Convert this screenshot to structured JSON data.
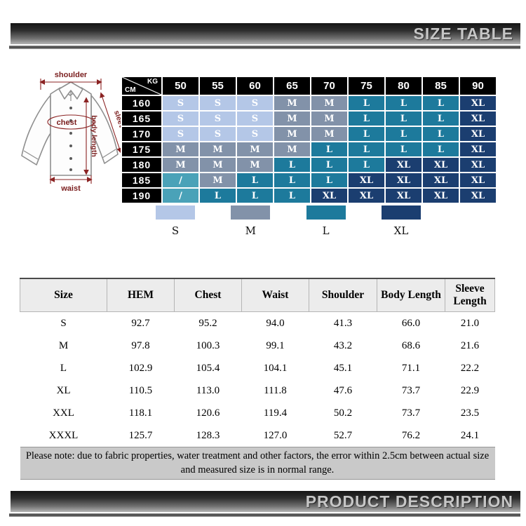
{
  "header_bar": {
    "title": "SIZE TABLE"
  },
  "footer_bar": {
    "title": "PRODUCT DESCRIPTION"
  },
  "diagram": {
    "annotation_color": "#8b2323",
    "labels": {
      "shoulder": "shoulder",
      "chest": "chest",
      "sleeve": "sleeve",
      "body_length": "body length",
      "waist": "waist"
    }
  },
  "matrix": {
    "corner": {
      "top_right": "KG",
      "bottom_left": "CM"
    },
    "kg_columns": [
      "50",
      "55",
      "60",
      "65",
      "70",
      "75",
      "80",
      "85",
      "90"
    ],
    "rows": [
      {
        "cm": "160",
        "cells": [
          "S",
          "S",
          "S",
          "M",
          "M",
          "L",
          "L",
          "L",
          "XL"
        ]
      },
      {
        "cm": "165",
        "cells": [
          "S",
          "S",
          "S",
          "M",
          "M",
          "L",
          "L",
          "L",
          "XL"
        ]
      },
      {
        "cm": "170",
        "cells": [
          "S",
          "S",
          "S",
          "M",
          "M",
          "L",
          "L",
          "L",
          "XL"
        ]
      },
      {
        "cm": "175",
        "cells": [
          "M",
          "M",
          "M",
          "M",
          "L",
          "L",
          "L",
          "L",
          "XL"
        ]
      },
      {
        "cm": "180",
        "cells": [
          "M",
          "M",
          "M",
          "L",
          "L",
          "L",
          "XL",
          "XL",
          "XL"
        ]
      },
      {
        "cm": "185",
        "cells": [
          "/",
          "M",
          "L",
          "L",
          "L",
          "XL",
          "XL",
          "XL",
          "XL"
        ]
      },
      {
        "cm": "190",
        "cells": [
          "/",
          "L",
          "L",
          "L",
          "XL",
          "XL",
          "XL",
          "XL",
          "XL"
        ]
      }
    ],
    "size_colors": {
      "S": "#b4c7e7",
      "M": "#8292a9",
      "L": "#1d7a9c",
      "XL": "#1b3e70",
      "/": "#4aa2b8"
    }
  },
  "legend": [
    {
      "label": "S",
      "color": "#b4c7e7"
    },
    {
      "label": "M",
      "color": "#8292a9"
    },
    {
      "label": "L",
      "color": "#1d7a9c"
    },
    {
      "label": "XL",
      "color": "#1b3e70"
    }
  ],
  "size_table": {
    "columns": [
      "Size",
      "HEM",
      "Chest",
      "Waist",
      "Shoulder",
      "Body Length",
      "Sleeve Length"
    ],
    "rows": [
      [
        "S",
        "92.7",
        "95.2",
        "94.0",
        "41.3",
        "66.0",
        "21.0"
      ],
      [
        "M",
        "97.8",
        "100.3",
        "99.1",
        "43.2",
        "68.6",
        "21.6"
      ],
      [
        "L",
        "102.9",
        "105.4",
        "104.1",
        "45.1",
        "71.1",
        "22.2"
      ],
      [
        "XL",
        "110.5",
        "113.0",
        "111.8",
        "47.6",
        "73.7",
        "22.9"
      ],
      [
        "XXL",
        "118.1",
        "120.6",
        "119.4",
        "50.2",
        "73.7",
        "23.5"
      ],
      [
        "XXXL",
        "125.7",
        "128.3",
        "127.0",
        "52.7",
        "76.2",
        "24.1"
      ]
    ]
  },
  "note": "Please note: due to fabric properties, water treatment and other factors, the error within 2.5cm between actual size and measured size is in normal range."
}
